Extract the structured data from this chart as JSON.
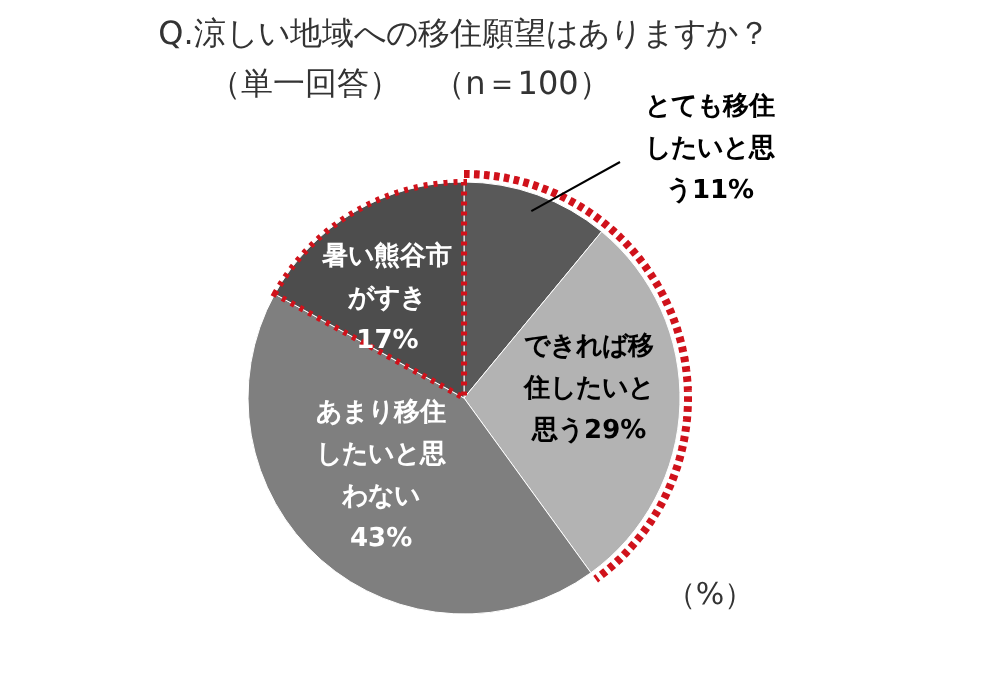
{
  "chart_data": {
    "type": "pie",
    "title": "Q.涼しい地域への移住願望はありますか？",
    "subtitle": "（単一回答）　（n＝100）",
    "categories": [
      "とても移住したいと思う",
      "できれば移住したいと思う",
      "あまり移住したいと思わない",
      "暑い熊谷市がすき"
    ],
    "values": [
      11,
      29,
      43,
      17
    ],
    "value_labels": [
      "11%",
      "29%",
      "43%",
      "17%"
    ],
    "colors": [
      "#595959",
      "#b3b3b3",
      "#7f7f7f",
      "#4d4d4d"
    ],
    "annotations": [
      "（%）"
    ]
  }
}
